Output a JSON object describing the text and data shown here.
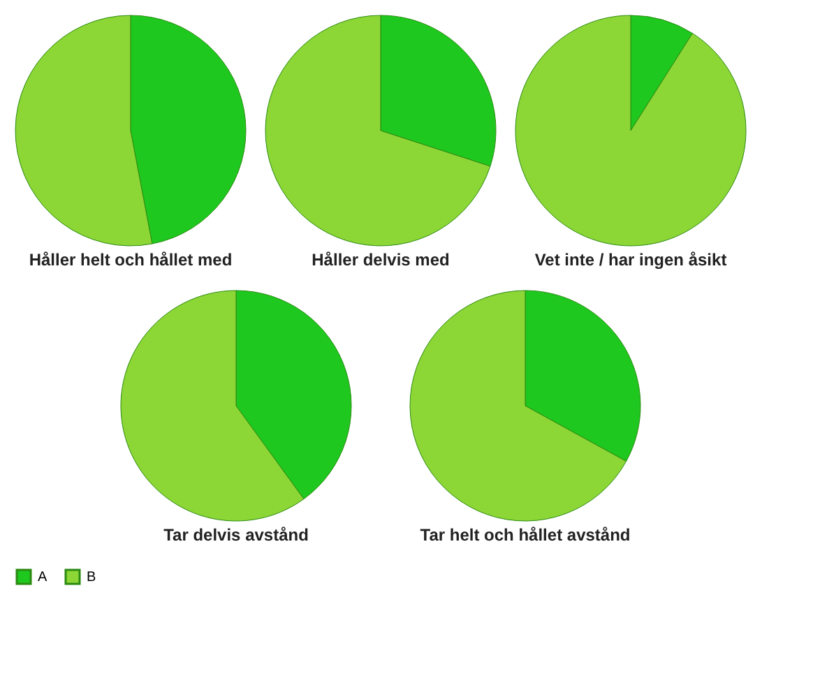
{
  "chart_data": [
    {
      "type": "pie",
      "title": "Håller helt och hållet med",
      "categories": [
        "A",
        "B"
      ],
      "values": [
        47,
        53
      ],
      "colors": [
        "#1ec81e",
        "#8cd636"
      ],
      "legend": "bottom"
    },
    {
      "type": "pie",
      "title": "Håller delvis med",
      "categories": [
        null,
        null
      ],
      "values": [
        30,
        70
      ],
      "colors": [
        "#1ec81e",
        "#8cd636"
      ]
    },
    {
      "type": "pie",
      "title": "Vet inte / har ingen åsikt",
      "categories": [
        null,
        null
      ],
      "values": [
        9,
        91
      ],
      "colors": [
        "#1ec81e",
        "#8cd636"
      ]
    },
    {
      "type": "pie",
      "title": "Tar delvis avstånd",
      "categories": [
        null,
        null
      ],
      "values": [
        40,
        60
      ],
      "colors": [
        "#1ec81e",
        "#8cd636"
      ]
    },
    {
      "type": "pie",
      "title": "Tar helt och hållet avstånd",
      "categories": [
        null,
        null
      ],
      "values": [
        33,
        67
      ],
      "colors": [
        "#1ec81e",
        "#8cd636"
      ]
    }
  ]
}
